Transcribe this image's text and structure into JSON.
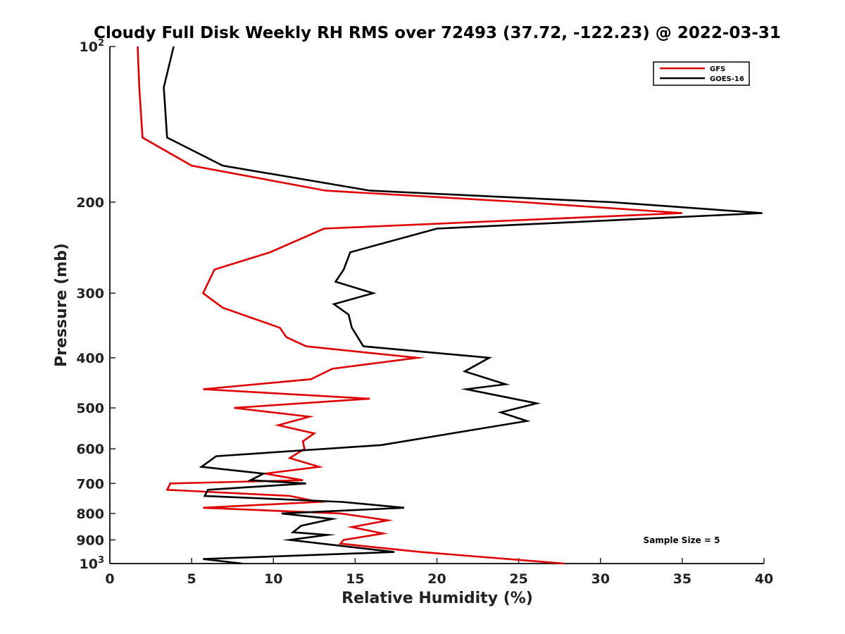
{
  "chart_data": {
    "type": "line",
    "title": "Cloudy Full Disk Weekly RH RMS over 72493 (37.72, -122.23) @ 2022-03-31",
    "xlabel": "Relative Humidity (%)",
    "ylabel": "Pressure (mb)",
    "xlim": [
      0,
      40
    ],
    "ylim": [
      100,
      1000
    ],
    "y_scale": "log",
    "y_reversed": true,
    "grid": false,
    "legend_position": "top-right",
    "x_ticks": [
      0,
      5,
      10,
      15,
      20,
      25,
      30,
      35,
      40
    ],
    "x_tick_labels": [
      "0",
      "5",
      "10",
      "15",
      "20",
      "25",
      "30",
      "35",
      "40"
    ],
    "y_ticks": [
      100,
      200,
      300,
      400,
      500,
      600,
      700,
      800,
      900,
      1000
    ],
    "y_tick_labels": [
      "10^2",
      "200",
      "300",
      "400",
      "500",
      "600",
      "700",
      "800",
      "900",
      "10^3"
    ],
    "annotation": "Sample Size = 5",
    "series": [
      {
        "name": "GFS",
        "color": "#e00000",
        "x": [
          1.7,
          1.8,
          2.0,
          5.0,
          13.2,
          25.3,
          35.0,
          13.1,
          9.8,
          6.4,
          5.7,
          6.9,
          10.4,
          10.8,
          12.0,
          18.8,
          13.6,
          12.3,
          5.7,
          15.9,
          7.6,
          12.2,
          10.3,
          12.5,
          11.8,
          11.9,
          11.0,
          12.8,
          9.5,
          11.8,
          3.7,
          3.5,
          11.0,
          12.8,
          5.7,
          14.1,
          17.0,
          14.8,
          16.7,
          14.3,
          14.1,
          19.0,
          27.8
        ],
        "y": [
          100,
          120,
          150,
          170,
          190,
          200,
          210,
          225,
          250,
          270,
          300,
          320,
          350,
          365,
          380,
          400,
          420,
          440,
          460,
          480,
          500,
          520,
          540,
          560,
          580,
          600,
          625,
          650,
          670,
          690,
          700,
          720,
          740,
          760,
          780,
          800,
          825,
          850,
          875,
          900,
          915,
          950,
          1000
        ]
      },
      {
        "name": "GOES-16",
        "color": "#000000",
        "x": [
          3.9,
          3.3,
          3.5,
          6.9,
          15.9,
          30.7,
          39.9,
          20.0,
          14.7,
          14.3,
          13.8,
          16.1,
          13.7,
          14.6,
          14.8,
          15.5,
          23.2,
          21.7,
          24.2,
          21.8,
          26.1,
          23.9,
          25.5,
          16.6,
          6.5,
          5.6,
          9.4,
          8.6,
          12.0,
          6.0,
          5.8,
          14.2,
          18.0,
          10.5,
          13.6,
          11.7,
          11.2,
          13.3,
          11.0,
          13.6,
          17.4,
          5.7,
          8.1
        ],
        "y": [
          100,
          120,
          150,
          170,
          190,
          200,
          210,
          225,
          250,
          270,
          285,
          300,
          315,
          330,
          350,
          380,
          400,
          425,
          450,
          460,
          490,
          510,
          530,
          590,
          620,
          650,
          670,
          690,
          700,
          720,
          740,
          760,
          780,
          800,
          820,
          845,
          870,
          880,
          900,
          920,
          950,
          980,
          1000
        ]
      }
    ]
  }
}
